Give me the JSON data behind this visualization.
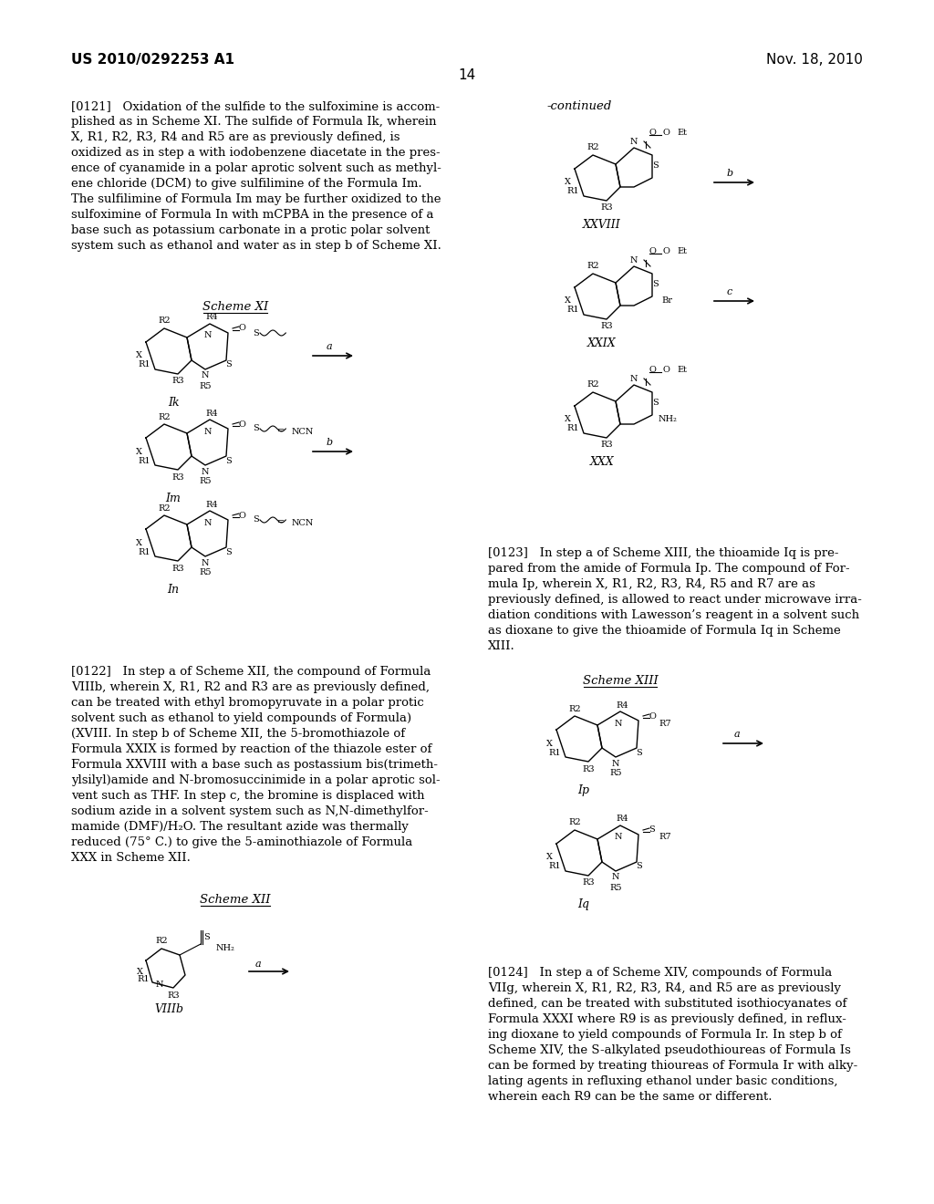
{
  "bg_color": "#ffffff",
  "header_left": "US 2010/0292253 A1",
  "header_right": "Nov. 18, 2010",
  "page_number": "14",
  "para_0121": "[0121]   Oxidation of the sulfide to the sulfoximine is accomplished as in Scheme XI. The sulfide of Formula Ik, wherein X, R1, R2, R3, R4 and R5 are as previously defined, is oxidized as in step a with iodobenzene diacetate in the presence of cyanamide in a polar aprotic solvent such as methylene chloride (DCM) to give sulfilimine of the Formula Im. The sulfilimine of Formula Im may be further oxidized to the sulfoximine of Formula In with mCPBA in the presence of a base such as potassium carbonate in a protic polar solvent system such as ethanol and water as in step b of Scheme XI.",
  "para_0122": "[0122]   In step a of Scheme XII, the compound of Formula VIIIb, wherein X, R1, R2 and R3 are as previously defined, can be treated with ethyl bromopyruvate in a polar protic solvent such as ethanol to yield compounds of Formula) (XVIII. In step b of Scheme XII, the 5-bromothiazole of Formula XXIX is formed by reaction of the thiazole ester of Formula XXVIII with a base such as postassium bis(trimethylsilyl)amide and N-bromosuccinimide in a polar aprotic solvent such as THF. In step c, the bromine is displaced with sodium azide in a solvent system such as N,N-dimethylformamide (DMF)/H₂O. The resultant azide was thermally reduced (75° C.) to give the 5-aminothiazole of Formula XXX in Scheme XII.",
  "para_0123": "[0123]   In step a of Scheme XIII, the thioamide Iq is prepared from the amide of Formula Ip. The compound of Formula Ip, wherein X, R1, R2, R3, R4, R5 and R7 are as previously defined, is allowed to react under microwave irradiation conditions with Lawesson’s reagent in a solvent such as dioxane to give the thioamide of Formula Iq in Scheme XIII.",
  "para_0124": "[0124]   In step a of Scheme XIV, compounds of Formula VIIg, wherein X, R1, R2, R3, R4, and R5 are as previously defined, can be treated with substituted isothiocyanates of Formula XXXI where R9 is as previously defined, in refluxing dioxane to yield compounds of Formula Ir. In step b of Scheme XIV, the S-alkylated pseudothioureas of Formula Is can be formed by treating thioureas of Formula Ir with alkylating agents in refluxing ethanol under basic conditions, wherein each R9 can be the same or different."
}
